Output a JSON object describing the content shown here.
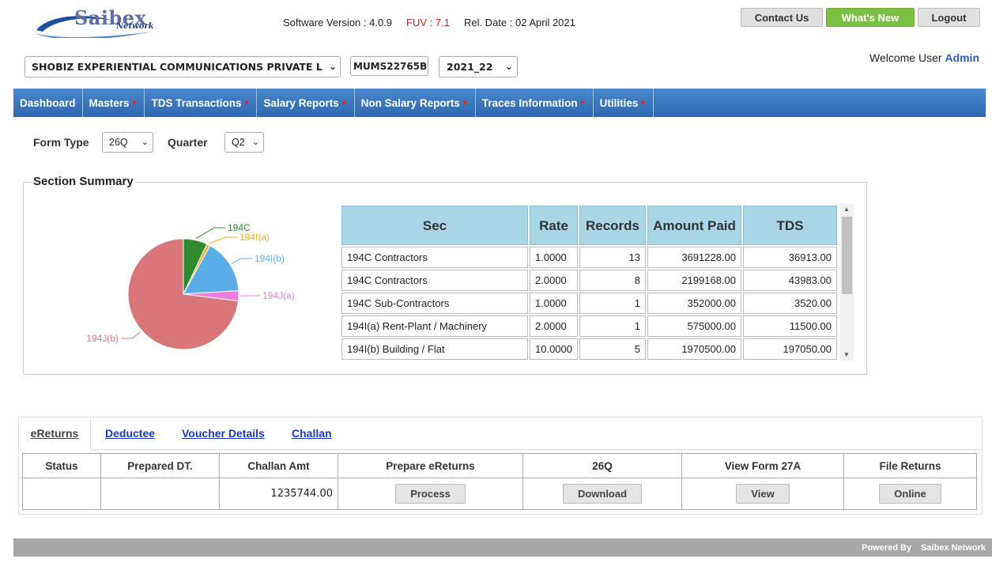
{
  "header": {
    "logo_text": "Saibex",
    "logo_sub": "Network",
    "software_version": "Software Version : 4.0.9",
    "fuv": "FUV : 7.1",
    "rel_date": "Rel. Date : 02 April 2021",
    "buttons": {
      "contact": "Contact Us",
      "whats_new": "What's New",
      "logout": "Logout"
    },
    "company": "SHOBIZ EXPERIENTIAL COMMUNICATIONS PRIVATE L",
    "tan": "MUMS22765B",
    "fy": "2021_22",
    "welcome": "Welcome User",
    "user": "Admin"
  },
  "nav": {
    "items": [
      "Dashboard",
      "Masters",
      "TDS Transactions",
      "Salary Reports",
      "Non Salary Reports",
      "Traces Information",
      "Utilities"
    ]
  },
  "filters": {
    "form_type_label": "Form Type",
    "form_type_value": "26Q",
    "quarter_label": "Quarter",
    "quarter_value": "Q2"
  },
  "section_summary": {
    "title": "Section Summary",
    "columns": {
      "sec": "Sec",
      "rate": "Rate",
      "records": "Records",
      "amount": "Amount Paid",
      "tds": "TDS"
    },
    "rows": [
      {
        "sec": "194C Contractors",
        "rate": "1.0000",
        "records": "13",
        "amount": "3691228.00",
        "tds": "36913.00"
      },
      {
        "sec": "194C Contractors",
        "rate": "2.0000",
        "records": "8",
        "amount": "2199168.00",
        "tds": "43983.00"
      },
      {
        "sec": "194C Sub-Contractors",
        "rate": "1.0000",
        "records": "1",
        "amount": "352000.00",
        "tds": "3520.00"
      },
      {
        "sec": "194I(a) Rent-Plant / Machinery",
        "rate": "2.0000",
        "records": "1",
        "amount": "575000.00",
        "tds": "11500.00"
      },
      {
        "sec": "194I(b) Building / Flat",
        "rate": "10.0000",
        "records": "5",
        "amount": "1970500.00",
        "tds": "197050.00"
      }
    ]
  },
  "chart_data": {
    "type": "pie",
    "categories": [
      "194C",
      "194I(a)",
      "194I(b)",
      "194J(a)",
      "194J(b)"
    ],
    "values": [
      7.0,
      1.0,
      16.0,
      3.0,
      73.0
    ],
    "colors": [
      "#2e8b2e",
      "#f0b020",
      "#5aaee8",
      "#f07ce0",
      "#d9767a"
    ]
  },
  "tabs": {
    "ereturns": "eReturns",
    "deductee": "Deductee",
    "voucher": "Voucher Details",
    "challan": "Challan"
  },
  "returns_table": {
    "columns": {
      "status": "Status",
      "prepared": "Prepared DT.",
      "challan_amt": "Challan Amt",
      "prepare": "Prepare eReturns",
      "form": "26Q",
      "view27a": "View Form 27A",
      "file": "File Returns"
    },
    "row": {
      "status": "",
      "prepared": "",
      "challan_amt": "1235744.00"
    },
    "buttons": {
      "process": "Process",
      "download": "Download",
      "view": "View",
      "online": "Online"
    }
  },
  "footer": {
    "powered_by": "Powered By",
    "brand": "Saibex Network"
  }
}
